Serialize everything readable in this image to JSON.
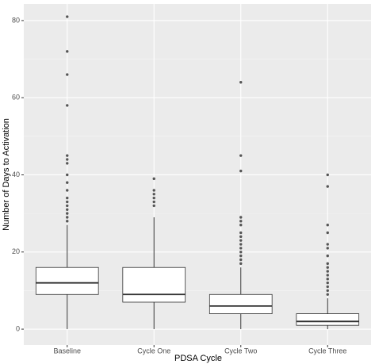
{
  "chart_data": {
    "type": "box",
    "x_label": "PDSA Cycle",
    "y_label": "Number of Days to Activation",
    "categories": [
      "Baseline",
      "Cycle One",
      "Cycle Two",
      "Cycle Three"
    ],
    "boxes": [
      {
        "min": 0,
        "q1": 9,
        "median": 12,
        "q3": 16,
        "max": 27,
        "outliers": [
          81,
          72,
          66,
          58,
          45,
          44,
          43,
          40,
          38,
          36,
          34,
          33,
          32,
          31,
          30,
          29,
          28
        ]
      },
      {
        "min": 0,
        "q1": 7,
        "median": 9,
        "q3": 16,
        "max": 29,
        "outliers": [
          39,
          36,
          35,
          34,
          33,
          32
        ]
      },
      {
        "min": 0,
        "q1": 4,
        "median": 6,
        "q3": 9,
        "max": 16,
        "outliers": [
          64,
          45,
          41,
          29,
          28,
          27,
          25,
          24,
          23,
          22,
          21,
          20,
          19,
          18,
          17
        ]
      },
      {
        "min": 0,
        "q1": 1,
        "median": 2,
        "q3": 4,
        "max": 8,
        "outliers": [
          40,
          37,
          27,
          25,
          22,
          21,
          19,
          17,
          16,
          15,
          14,
          13,
          12,
          11,
          10,
          9
        ]
      }
    ],
    "box_fill": "#ffffff",
    "box_stroke": "#333333",
    "outlier_color": "#555555",
    "ylim": [
      -4.1,
      84.3
    ],
    "yticks": [
      0,
      20,
      40,
      60,
      80
    ],
    "grid": true
  }
}
